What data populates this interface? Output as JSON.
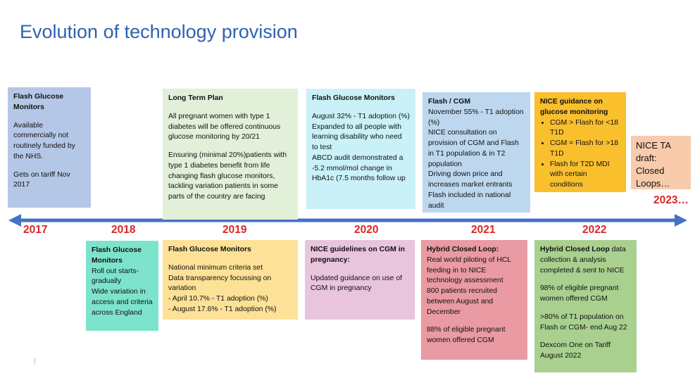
{
  "title": "Evolution of technology provision",
  "colors": {
    "title": "#2f62b0",
    "year": "#d62828",
    "axis": "#4472c4"
  },
  "years": [
    "2017",
    "2018",
    "2019",
    "2020",
    "2021",
    "2022",
    "2023…"
  ],
  "top_boxes": [
    {
      "heading": "Flash Glucose Monitors",
      "lines": [
        "Available commercially not routinely funded by the NHS."
      ],
      "lines2": [
        "Gets on tariff Nov 2017"
      ]
    },
    {
      "heading": "Long Term Plan",
      "lines": [
        "All pregnant women with type 1 diabetes will be offered continuous glucose monitoring by 20/21"
      ],
      "lines2": [
        "Ensuring (minimal 20%)patients with type 1 diabetes benefit from life changing flash glucose monitors, tackling variation patients in some parts of the country are facing"
      ]
    },
    {
      "heading": "Flash Glucose Monitors",
      "lines": [
        "August 32% - T1 adoption (%)",
        "Expanded to all people with learning disability who need to test",
        "ABCD audit demonstrated a -5.2 mmol/mol change in HbA1c (7.5 months follow up"
      ]
    },
    {
      "heading": "Flash / CGM",
      "lines": [
        "November 55% - T1 adoption (%)",
        "NICE consultation on provision of CGM and Flash in T1 population & in T2 population",
        "Driving down price and increases market entrants",
        "Flash included in national audit"
      ]
    },
    {
      "heading": "NICE guidance on glucose monitoring",
      "bullets": [
        "CGM > Flash for <18 T1D",
        "CGM = Flash for >18 T1D",
        "Flash for T2D MDI with certain conditions"
      ]
    },
    {
      "lines": [
        "NICE TA draft: Closed Loops…"
      ]
    }
  ],
  "bottom_boxes": [
    {
      "heading": "Flash Glucose Monitors",
      "lines": [
        "Roll out starts-gradually",
        "Wide variation in access and criteria across England"
      ]
    },
    {
      "heading": "Flash Glucose Monitors",
      "lines": [
        "National minimum criteria set",
        "Data transparency focussing on variation",
        "- April 10.7% - T1 adoption (%)",
        "- August 17.6% - T1 adoption (%)"
      ]
    },
    {
      "heading": "NICE guidelines on CGM in pregnancy:",
      "lines": [
        "Updated guidance on use of CGM in pregnancy"
      ]
    },
    {
      "heading": "Hybrid Closed Loop:",
      "lines": [
        "Real world piloting of HCL feeding in to NICE technology assessment",
        "800 patients recruited between August and December"
      ],
      "lines2": [
        "88% of eligible pregnant women offered CGM"
      ]
    },
    {
      "heading": "Hybrid Closed Loop",
      "heading_rest": " data collection & analysis completed & sent to NICE",
      "p1": "98% of eligible pregnant women offered CGM",
      "p2": ">80% of T1 population on Flash or CGM- end Aug 22",
      "p3": "Dexcom One on Tariff August 2022"
    }
  ]
}
